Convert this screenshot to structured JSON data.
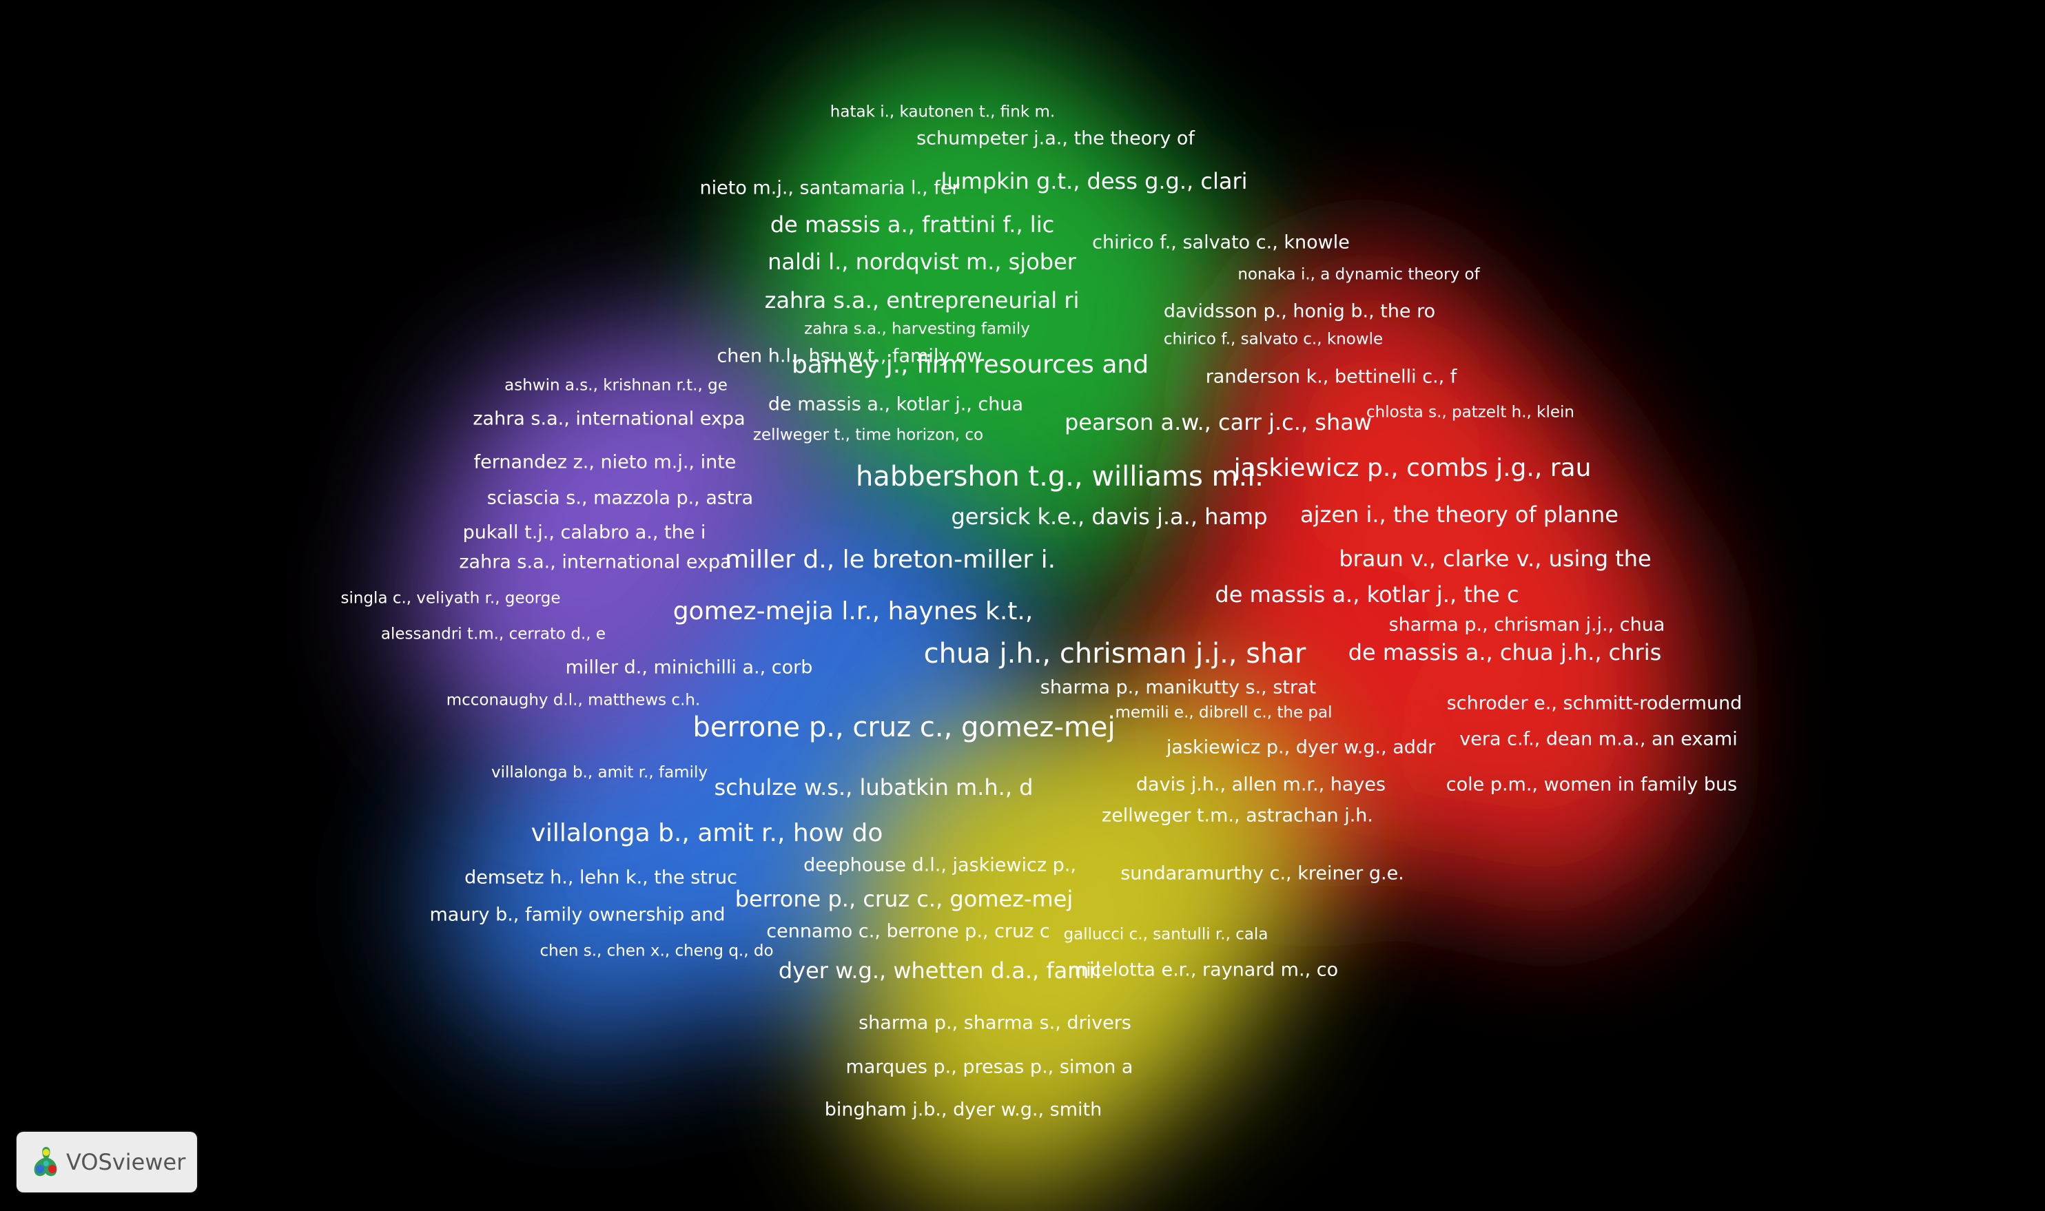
{
  "app": {
    "name": "VOSviewer"
  },
  "clusters": [
    {
      "name": "green",
      "color": "#1fa32e"
    },
    {
      "name": "red",
      "color": "#e0201f"
    },
    {
      "name": "blue",
      "color": "#2e6fd6"
    },
    {
      "name": "purple",
      "color": "#7a55c8"
    },
    {
      "name": "yellow",
      "color": "#c8c020"
    }
  ],
  "nodes": [
    {
      "label": "hatak i., kautonen t., fink m.",
      "cluster": "green",
      "weight": 1
    },
    {
      "label": "schumpeter j.a., the theory of",
      "cluster": "green",
      "weight": 2
    },
    {
      "label": "nieto m.j., santamaria l., fer",
      "cluster": "green",
      "weight": 2
    },
    {
      "label": "lumpkin g.t., dess g.g., clari",
      "cluster": "green",
      "weight": 3
    },
    {
      "label": "de massis a., frattini f., lic",
      "cluster": "green",
      "weight": 3
    },
    {
      "label": "chirico f., salvato c., knowle",
      "cluster": "green",
      "weight": 2
    },
    {
      "label": "nonaka i., a dynamic theory of",
      "cluster": "red",
      "weight": 1
    },
    {
      "label": "naldi l., nordqvist m., sjober",
      "cluster": "green",
      "weight": 3
    },
    {
      "label": "zahra s.a., entrepreneurial ri",
      "cluster": "green",
      "weight": 3
    },
    {
      "label": "davidsson p., honig b., the ro",
      "cluster": "red",
      "weight": 2
    },
    {
      "label": "zahra s.a., harvesting family",
      "cluster": "green",
      "weight": 1
    },
    {
      "label": "chirico f., salvato c., knowle",
      "cluster": "red",
      "weight": 1
    },
    {
      "label": "chen h.l., hsu w.t., family ow",
      "cluster": "purple",
      "weight": 2
    },
    {
      "label": "barney j., firm resources and",
      "cluster": "green",
      "weight": 4
    },
    {
      "label": "randerson k., bettinelli c., f",
      "cluster": "red",
      "weight": 2
    },
    {
      "label": "ashwin a.s., krishnan r.t., ge",
      "cluster": "purple",
      "weight": 1
    },
    {
      "label": "de massis a., kotlar j., chua",
      "cluster": "green",
      "weight": 2
    },
    {
      "label": "chlosta s., patzelt h., klein",
      "cluster": "red",
      "weight": 1
    },
    {
      "label": "zahra s.a., international expa",
      "cluster": "purple",
      "weight": 2
    },
    {
      "label": "pearson a.w., carr j.c., shaw",
      "cluster": "green",
      "weight": 3
    },
    {
      "label": "zellweger t., time horizon, co",
      "cluster": "green",
      "weight": 1
    },
    {
      "label": "fernandez z., nieto m.j., inte",
      "cluster": "purple",
      "weight": 2
    },
    {
      "label": "habbershon t.g., williams m.l.",
      "cluster": "green",
      "weight": 5
    },
    {
      "label": "jaskiewicz p., combs j.g., rau",
      "cluster": "red",
      "weight": 4
    },
    {
      "label": "sciascia s., mazzola p., astra",
      "cluster": "purple",
      "weight": 2
    },
    {
      "label": "gersick k.e., davis j.a., hamp",
      "cluster": "green",
      "weight": 3
    },
    {
      "label": "ajzen i., the theory of planne",
      "cluster": "red",
      "weight": 3
    },
    {
      "label": "pukall t.j., calabro a., the i",
      "cluster": "purple",
      "weight": 2
    },
    {
      "label": "zahra s.a., international expa",
      "cluster": "purple",
      "weight": 2
    },
    {
      "label": "miller d., le breton-miller i.",
      "cluster": "blue",
      "weight": 4
    },
    {
      "label": "braun v., clarke v., using the",
      "cluster": "red",
      "weight": 3
    },
    {
      "label": "singla c., veliyath r., george",
      "cluster": "purple",
      "weight": 1
    },
    {
      "label": "de massis a., kotlar j., the c",
      "cluster": "red",
      "weight": 3
    },
    {
      "label": "gomez-mejia l.r., haynes k.t.,",
      "cluster": "blue",
      "weight": 4
    },
    {
      "label": "sharma p., chrisman j.j., chua",
      "cluster": "red",
      "weight": 2
    },
    {
      "label": "alessandri t.m., cerrato d., e",
      "cluster": "purple",
      "weight": 1
    },
    {
      "label": "chua j.h., chrisman j.j., shar",
      "cluster": "red",
      "weight": 5
    },
    {
      "label": "de massis a., chua j.h., chris",
      "cluster": "red",
      "weight": 3
    },
    {
      "label": "miller d., minichilli a., corb",
      "cluster": "blue",
      "weight": 2
    },
    {
      "label": "sharma p., manikutty s., strat",
      "cluster": "red",
      "weight": 2
    },
    {
      "label": "mcconaughy d.l., matthews c.h.",
      "cluster": "purple",
      "weight": 1
    },
    {
      "label": "memili e., dibrell c., the pal",
      "cluster": "red",
      "weight": 1
    },
    {
      "label": "schroder e., schmitt-rodermund",
      "cluster": "red",
      "weight": 2
    },
    {
      "label": "berrone p., cruz c., gomez-mej",
      "cluster": "blue",
      "weight": 5
    },
    {
      "label": "jaskiewicz p., dyer w.g., addr",
      "cluster": "red",
      "weight": 2
    },
    {
      "label": "vera c.f., dean m.a., an exami",
      "cluster": "red",
      "weight": 2
    },
    {
      "label": "villalonga b., amit r., family",
      "cluster": "blue",
      "weight": 1
    },
    {
      "label": "davis j.h., allen m.r., hayes",
      "cluster": "red",
      "weight": 2
    },
    {
      "label": "cole p.m., women in family bus",
      "cluster": "red",
      "weight": 2
    },
    {
      "label": "schulze w.s., lubatkin m.h., d",
      "cluster": "blue",
      "weight": 3
    },
    {
      "label": "zellweger t.m., astrachan j.h.",
      "cluster": "yellow",
      "weight": 2
    },
    {
      "label": "villalonga b., amit r., how do",
      "cluster": "blue",
      "weight": 4
    },
    {
      "label": "deephouse d.l., jaskiewicz p.,",
      "cluster": "yellow",
      "weight": 2
    },
    {
      "label": "demsetz h., lehn k., the struc",
      "cluster": "blue",
      "weight": 2
    },
    {
      "label": "sundaramurthy c., kreiner g.e.",
      "cluster": "yellow",
      "weight": 2
    },
    {
      "label": "maury b., family ownership and",
      "cluster": "blue",
      "weight": 2
    },
    {
      "label": "berrone p., cruz c., gomez-mej",
      "cluster": "yellow",
      "weight": 3
    },
    {
      "label": "cennamo c., berrone p., cruz c",
      "cluster": "yellow",
      "weight": 2
    },
    {
      "label": "gallucci c., santulli r., cala",
      "cluster": "yellow",
      "weight": 1
    },
    {
      "label": "chen s., chen x., cheng q., do",
      "cluster": "blue",
      "weight": 1
    },
    {
      "label": "dyer w.g., whetten d.a., famil",
      "cluster": "yellow",
      "weight": 3
    },
    {
      "label": "micelotta e.r., raynard m., co",
      "cluster": "yellow",
      "weight": 2
    },
    {
      "label": "sharma p., sharma s., drivers",
      "cluster": "yellow",
      "weight": 2
    },
    {
      "label": "marques p., presas p., simon a",
      "cluster": "yellow",
      "weight": 2
    },
    {
      "label": "bingham j.b., dyer w.g., smith",
      "cluster": "yellow",
      "weight": 2
    }
  ]
}
